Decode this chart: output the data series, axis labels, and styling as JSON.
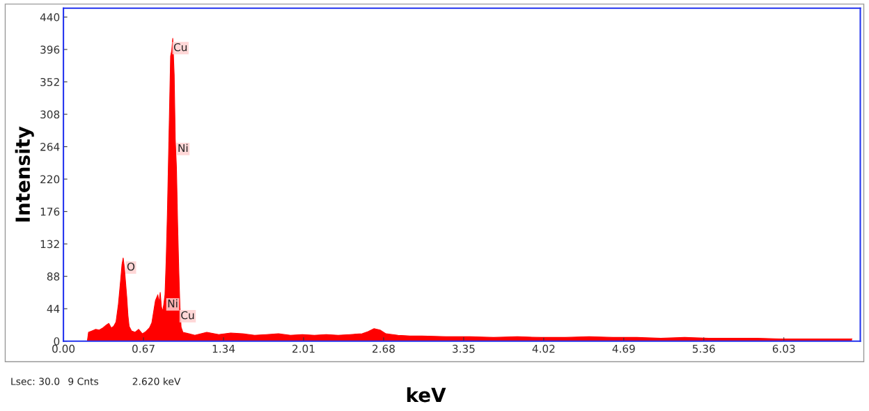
{
  "chart_data": {
    "type": "area",
    "xlabel": "keV",
    "ylabel": "Intensity",
    "x": [
      0.2,
      0.21,
      0.24,
      0.27,
      0.3,
      0.33,
      0.36,
      0.38,
      0.4,
      0.42,
      0.44,
      0.46,
      0.48,
      0.49,
      0.5,
      0.51,
      0.52,
      0.53,
      0.54,
      0.55,
      0.57,
      0.6,
      0.63,
      0.66,
      0.69,
      0.72,
      0.74,
      0.76,
      0.77,
      0.79,
      0.8,
      0.81,
      0.82,
      0.83,
      0.84,
      0.85,
      0.86,
      0.87,
      0.878,
      0.888,
      0.897,
      0.907,
      0.915,
      0.927,
      0.936,
      0.946,
      0.956,
      0.966,
      0.975,
      0.985,
      1.0,
      1.05,
      1.1,
      1.2,
      1.3,
      1.4,
      1.5,
      1.6,
      1.7,
      1.8,
      1.9,
      2.0,
      2.1,
      2.2,
      2.3,
      2.4,
      2.5,
      2.55,
      2.6,
      2.65,
      2.7,
      2.8,
      2.9,
      3.0,
      3.2,
      3.4,
      3.6,
      3.8,
      4.0,
      4.2,
      4.4,
      4.6,
      4.8,
      5.0,
      5.2,
      5.4,
      5.6,
      5.8,
      6.0,
      6.2,
      6.4,
      6.6
    ],
    "series": [
      {
        "color": "#ff0000",
        "values": [
          0,
          12,
          14,
          16,
          15,
          18,
          22,
          24,
          18,
          20,
          26,
          50,
          85,
          104,
          113,
          100,
          80,
          60,
          35,
          20,
          14,
          12,
          16,
          10,
          13,
          18,
          25,
          45,
          55,
          63,
          52,
          66,
          47,
          40,
          50,
          63,
          110,
          173,
          236,
          315,
          387,
          395,
          411,
          362,
          274,
          236,
          158,
          94,
          47,
          19,
          12,
          10,
          8,
          12,
          9,
          11,
          10,
          8,
          9,
          10,
          8,
          9,
          8,
          9,
          8,
          9,
          10,
          13,
          17,
          15,
          10,
          8,
          7,
          7,
          6,
          6,
          5,
          6,
          5,
          5,
          6,
          5,
          5,
          4,
          5,
          4,
          4,
          4,
          3,
          3,
          3,
          3
        ]
      }
    ],
    "xlim": [
      0,
      6.67
    ],
    "ylim": [
      0,
      452
    ],
    "xticks": [
      {
        "value": 0,
        "label": "0.00"
      },
      0.67,
      1.34,
      2.01,
      2.68,
      3.35,
      4.02,
      4.69,
      5.36,
      6.03
    ],
    "yticks": [
      0,
      44,
      88,
      132,
      176,
      220,
      264,
      308,
      352,
      396,
      440
    ],
    "grid": false,
    "legend": false,
    "annotations": [
      {
        "text": "Cu",
        "x": 0.915,
        "y": 411
      },
      {
        "text": "Ni",
        "x": 0.936,
        "y": 274
      },
      {
        "text": "O",
        "x": 0.5,
        "y": 113
      },
      {
        "text": "Ni",
        "x": 0.85,
        "y": 63
      },
      {
        "text": "Cu",
        "x": 0.975,
        "y": 47
      },
      "Lsec: 30.0",
      "9 Cnts",
      "2.620 keV"
    ]
  }
}
